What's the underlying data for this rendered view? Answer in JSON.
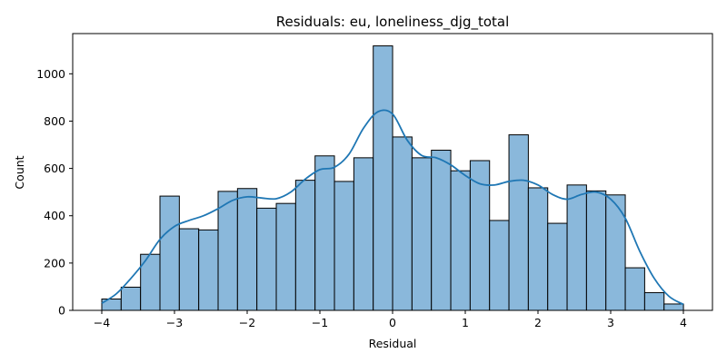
{
  "chart_data": {
    "type": "bar",
    "title": "Residuals: eu, loneliness_djg_total",
    "xlabel": "Residual",
    "ylabel": "Count",
    "xlim": [
      -4.4,
      4.4
    ],
    "ylim": [
      0,
      1170
    ],
    "x_ticks": [
      -4,
      -3,
      -2,
      -1,
      0,
      1,
      2,
      3,
      4
    ],
    "y_ticks": [
      0,
      200,
      400,
      600,
      800,
      1000
    ],
    "grid": false,
    "bin_start": -4.0,
    "bin_width": 0.2667,
    "counts": [
      48,
      98,
      237,
      483,
      345,
      340,
      503,
      515,
      432,
      452,
      550,
      653,
      545,
      645,
      1118,
      733,
      645,
      677,
      590,
      633,
      380,
      742,
      518,
      368,
      530,
      505,
      488,
      180,
      75,
      27
    ],
    "kde": {
      "name": "KDE",
      "x": [
        -4.0,
        -3.8,
        -3.6,
        -3.4,
        -3.2,
        -3.0,
        -2.8,
        -2.6,
        -2.4,
        -2.2,
        -2.0,
        -1.8,
        -1.6,
        -1.4,
        -1.2,
        -1.0,
        -0.8,
        -0.6,
        -0.4,
        -0.2,
        0.0,
        0.2,
        0.4,
        0.6,
        0.8,
        1.0,
        1.2,
        1.4,
        1.6,
        1.8,
        2.0,
        2.2,
        2.4,
        2.6,
        2.8,
        3.0,
        3.2,
        3.4,
        3.6,
        3.8,
        4.0
      ],
      "y": [
        30,
        70,
        135,
        210,
        300,
        355,
        380,
        400,
        430,
        465,
        480,
        475,
        472,
        500,
        555,
        595,
        605,
        660,
        770,
        840,
        830,
        720,
        655,
        645,
        615,
        570,
        535,
        530,
        545,
        550,
        530,
        490,
        470,
        490,
        500,
        470,
        390,
        250,
        135,
        60,
        25
      ]
    },
    "colors": {
      "bar_fill": "#8ab8db",
      "bar_edge": "#000000",
      "kde_line": "#1f77b4",
      "axis": "#000000"
    }
  }
}
